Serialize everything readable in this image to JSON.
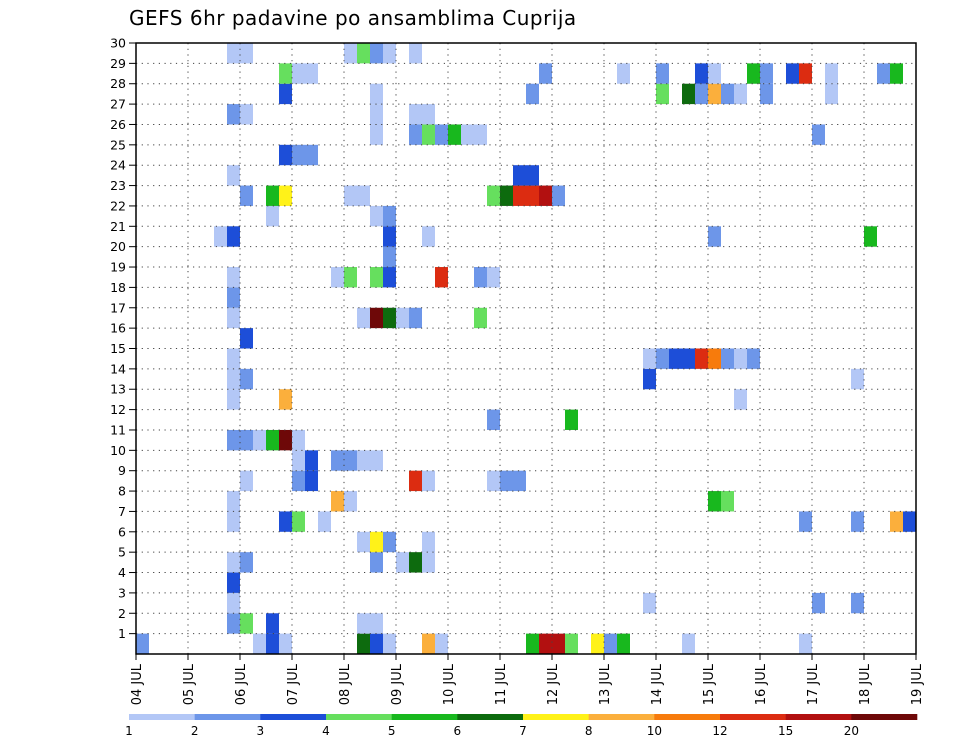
{
  "chart_data": {
    "type": "heatmap",
    "title": "GEFS 6hr padavine po ansamblima Cuprija",
    "x_tick_labels": [
      "04 JUL",
      "05 JUL",
      "06 JUL",
      "07 JUL",
      "08 JUL",
      "09 JUL",
      "10 JUL",
      "11 JUL",
      "12 JUL",
      "13 JUL",
      "14 JUL",
      "15 JUL",
      "16 JUL",
      "17 JUL",
      "18 JUL",
      "19 JUL"
    ],
    "y_tick_labels": [
      "1",
      "2",
      "3",
      "4",
      "5",
      "6",
      "7",
      "8",
      "9",
      "10",
      "11",
      "12",
      "13",
      "14",
      "15",
      "16",
      "17",
      "18",
      "19",
      "20",
      "21",
      "22",
      "23",
      "24",
      "25",
      "26",
      "27",
      "28",
      "29",
      "30"
    ],
    "x_range": [
      "04 JUL 00z",
      "19 JUL 00z"
    ],
    "time_step_hours": 6,
    "y_range": [
      0,
      30
    ],
    "grid": "dotted",
    "legend": {
      "position": "bottom",
      "boundaries": [
        "1",
        "2",
        "3",
        "4",
        "5",
        "6",
        "7",
        "8",
        "10",
        "12",
        "15",
        "20"
      ],
      "colors": [
        "#b3c7f6",
        "#6d96e9",
        "#1d4ed8",
        "#66df5e",
        "#18b81e",
        "#0d6b0e",
        "#fff219",
        "#fbaf3c",
        "#f77b0c",
        "#dc2c11",
        "#b21010",
        "#6e0808"
      ]
    },
    "cells": [
      {
        "x": "04 JUL 00z",
        "y": 0,
        "bin": 2
      },
      {
        "x": "06 JUL 06z",
        "y": 0,
        "bin": 1
      },
      {
        "x": "06 JUL 12z",
        "y": 0,
        "bin": 3
      },
      {
        "x": "06 JUL 18z",
        "y": 0,
        "bin": 1
      },
      {
        "x": "08 JUL 06z",
        "y": 0,
        "bin": 6
      },
      {
        "x": "08 JUL 12z",
        "y": 0,
        "bin": 3
      },
      {
        "x": "08 JUL 18z",
        "y": 0,
        "bin": 1
      },
      {
        "x": "09 JUL 12z",
        "y": 0,
        "bin": 8
      },
      {
        "x": "09 JUL 18z",
        "y": 0,
        "bin": 1
      },
      {
        "x": "11 JUL 12z",
        "y": 0,
        "bin": 5
      },
      {
        "x": "11 JUL 18z",
        "y": 0,
        "bin": 11
      },
      {
        "x": "12 JUL 00z",
        "y": 0,
        "bin": 11
      },
      {
        "x": "12 JUL 06z",
        "y": 0,
        "bin": 4
      },
      {
        "x": "12 JUL 18z",
        "y": 0,
        "bin": 7
      },
      {
        "x": "13 JUL 00z",
        "y": 0,
        "bin": 2
      },
      {
        "x": "13 JUL 06z",
        "y": 0,
        "bin": 5
      },
      {
        "x": "14 JUL 12z",
        "y": 0,
        "bin": 1
      },
      {
        "x": "16 JUL 18z",
        "y": 0,
        "bin": 1
      },
      {
        "x": "05 JUL 18z",
        "y": 1,
        "bin": 2
      },
      {
        "x": "06 JUL 00z",
        "y": 1,
        "bin": 4
      },
      {
        "x": "06 JUL 12z",
        "y": 1,
        "bin": 3
      },
      {
        "x": "08 JUL 06z",
        "y": 1,
        "bin": 1
      },
      {
        "x": "08 JUL 12z",
        "y": 1,
        "bin": 1
      },
      {
        "x": "05 JUL 18z",
        "y": 2,
        "bin": 1
      },
      {
        "x": "13 JUL 18z",
        "y": 2,
        "bin": 1
      },
      {
        "x": "17 JUL 00z",
        "y": 2,
        "bin": 2
      },
      {
        "x": "17 JUL 18z",
        "y": 2,
        "bin": 2
      },
      {
        "x": "05 JUL 18z",
        "y": 3,
        "bin": 3
      },
      {
        "x": "05 JUL 18z",
        "y": 4,
        "bin": 1
      },
      {
        "x": "06 JUL 00z",
        "y": 4,
        "bin": 2
      },
      {
        "x": "08 JUL 12z",
        "y": 4,
        "bin": 2
      },
      {
        "x": "09 JUL 00z",
        "y": 4,
        "bin": 1
      },
      {
        "x": "09 JUL 06z",
        "y": 4,
        "bin": 6
      },
      {
        "x": "09 JUL 12z",
        "y": 4,
        "bin": 1
      },
      {
        "x": "08 JUL 06z",
        "y": 5,
        "bin": 1
      },
      {
        "x": "08 JUL 12z",
        "y": 5,
        "bin": 7
      },
      {
        "x": "08 JUL 18z",
        "y": 5,
        "bin": 2
      },
      {
        "x": "09 JUL 12z",
        "y": 5,
        "bin": 1
      },
      {
        "x": "05 JUL 18z",
        "y": 6,
        "bin": 1
      },
      {
        "x": "06 JUL 18z",
        "y": 6,
        "bin": 3
      },
      {
        "x": "07 JUL 00z",
        "y": 6,
        "bin": 4
      },
      {
        "x": "07 JUL 12z",
        "y": 6,
        "bin": 1
      },
      {
        "x": "16 JUL 18z",
        "y": 6,
        "bin": 2
      },
      {
        "x": "17 JUL 18z",
        "y": 6,
        "bin": 2
      },
      {
        "x": "18 JUL 12z",
        "y": 6,
        "bin": 8
      },
      {
        "x": "18 JUL 18z",
        "y": 6,
        "bin": 3
      },
      {
        "x": "05 JUL 18z",
        "y": 7,
        "bin": 1
      },
      {
        "x": "07 JUL 18z",
        "y": 7,
        "bin": 8
      },
      {
        "x": "08 JUL 00z",
        "y": 7,
        "bin": 1
      },
      {
        "x": "15 JUL 00z",
        "y": 7,
        "bin": 5
      },
      {
        "x": "15 JUL 06z",
        "y": 7,
        "bin": 4
      },
      {
        "x": "06 JUL 00z",
        "y": 8,
        "bin": 1
      },
      {
        "x": "07 JUL 00z",
        "y": 8,
        "bin": 2
      },
      {
        "x": "07 JUL 06z",
        "y": 8,
        "bin": 3
      },
      {
        "x": "09 JUL 06z",
        "y": 8,
        "bin": 10
      },
      {
        "x": "09 JUL 12z",
        "y": 8,
        "bin": 1
      },
      {
        "x": "10 JUL 18z",
        "y": 8,
        "bin": 1
      },
      {
        "x": "11 JUL 00z",
        "y": 8,
        "bin": 2
      },
      {
        "x": "11 JUL 06z",
        "y": 8,
        "bin": 2
      },
      {
        "x": "07 JUL 00z",
        "y": 9,
        "bin": 1
      },
      {
        "x": "07 JUL 06z",
        "y": 9,
        "bin": 3
      },
      {
        "x": "07 JUL 18z",
        "y": 9,
        "bin": 2
      },
      {
        "x": "08 JUL 00z",
        "y": 9,
        "bin": 2
      },
      {
        "x": "08 JUL 06z",
        "y": 9,
        "bin": 1
      },
      {
        "x": "08 JUL 12z",
        "y": 9,
        "bin": 1
      },
      {
        "x": "05 JUL 18z",
        "y": 10,
        "bin": 2
      },
      {
        "x": "06 JUL 00z",
        "y": 10,
        "bin": 2
      },
      {
        "x": "06 JUL 06z",
        "y": 10,
        "bin": 1
      },
      {
        "x": "06 JUL 12z",
        "y": 10,
        "bin": 5
      },
      {
        "x": "06 JUL 18z",
        "y": 10,
        "bin": 12
      },
      {
        "x": "07 JUL 00z",
        "y": 10,
        "bin": 1
      },
      {
        "x": "10 JUL 18z",
        "y": 11,
        "bin": 2
      },
      {
        "x": "12 JUL 06z",
        "y": 11,
        "bin": 5
      },
      {
        "x": "05 JUL 18z",
        "y": 12,
        "bin": 1
      },
      {
        "x": "06 JUL 18z",
        "y": 12,
        "bin": 8
      },
      {
        "x": "15 JUL 12z",
        "y": 12,
        "bin": 1
      },
      {
        "x": "05 JUL 18z",
        "y": 13,
        "bin": 1
      },
      {
        "x": "06 JUL 00z",
        "y": 13,
        "bin": 2
      },
      {
        "x": "13 JUL 18z",
        "y": 13,
        "bin": 3
      },
      {
        "x": "17 JUL 18z",
        "y": 13,
        "bin": 1
      },
      {
        "x": "05 JUL 18z",
        "y": 14,
        "bin": 1
      },
      {
        "x": "13 JUL 18z",
        "y": 14,
        "bin": 1
      },
      {
        "x": "14 JUL 00z",
        "y": 14,
        "bin": 2
      },
      {
        "x": "14 JUL 06z",
        "y": 14,
        "bin": 3
      },
      {
        "x": "14 JUL 12z",
        "y": 14,
        "bin": 3
      },
      {
        "x": "14 JUL 18z",
        "y": 14,
        "bin": 10
      },
      {
        "x": "15 JUL 00z",
        "y": 14,
        "bin": 9
      },
      {
        "x": "15 JUL 06z",
        "y": 14,
        "bin": 2
      },
      {
        "x": "15 JUL 12z",
        "y": 14,
        "bin": 1
      },
      {
        "x": "15 JUL 18z",
        "y": 14,
        "bin": 2
      },
      {
        "x": "06 JUL 00z",
        "y": 15,
        "bin": 3
      },
      {
        "x": "05 JUL 18z",
        "y": 16,
        "bin": 1
      },
      {
        "x": "08 JUL 06z",
        "y": 16,
        "bin": 1
      },
      {
        "x": "08 JUL 12z",
        "y": 16,
        "bin": 12
      },
      {
        "x": "08 JUL 18z",
        "y": 16,
        "bin": 6
      },
      {
        "x": "09 JUL 00z",
        "y": 16,
        "bin": 1
      },
      {
        "x": "09 JUL 06z",
        "y": 16,
        "bin": 2
      },
      {
        "x": "10 JUL 12z",
        "y": 16,
        "bin": 4
      },
      {
        "x": "05 JUL 18z",
        "y": 17,
        "bin": 2
      },
      {
        "x": "05 JUL 18z",
        "y": 18,
        "bin": 1
      },
      {
        "x": "07 JUL 18z",
        "y": 18,
        "bin": 1
      },
      {
        "x": "08 JUL 00z",
        "y": 18,
        "bin": 4
      },
      {
        "x": "08 JUL 12z",
        "y": 18,
        "bin": 4
      },
      {
        "x": "08 JUL 18z",
        "y": 18,
        "bin": 3
      },
      {
        "x": "09 JUL 18z",
        "y": 18,
        "bin": 10
      },
      {
        "x": "10 JUL 12z",
        "y": 18,
        "bin": 2
      },
      {
        "x": "10 JUL 18z",
        "y": 18,
        "bin": 1
      },
      {
        "x": "08 JUL 18z",
        "y": 19,
        "bin": 2
      },
      {
        "x": "05 JUL 12z",
        "y": 20,
        "bin": 1
      },
      {
        "x": "05 JUL 18z",
        "y": 20,
        "bin": 3
      },
      {
        "x": "08 JUL 18z",
        "y": 20,
        "bin": 3
      },
      {
        "x": "09 JUL 12z",
        "y": 20,
        "bin": 1
      },
      {
        "x": "15 JUL 00z",
        "y": 20,
        "bin": 2
      },
      {
        "x": "18 JUL 00z",
        "y": 20,
        "bin": 5
      },
      {
        "x": "06 JUL 12z",
        "y": 21,
        "bin": 1
      },
      {
        "x": "08 JUL 12z",
        "y": 21,
        "bin": 1
      },
      {
        "x": "08 JUL 18z",
        "y": 21,
        "bin": 2
      },
      {
        "x": "06 JUL 00z",
        "y": 22,
        "bin": 2
      },
      {
        "x": "06 JUL 12z",
        "y": 22,
        "bin": 5
      },
      {
        "x": "06 JUL 18z",
        "y": 22,
        "bin": 7
      },
      {
        "x": "08 JUL 00z",
        "y": 22,
        "bin": 1
      },
      {
        "x": "08 JUL 06z",
        "y": 22,
        "bin": 1
      },
      {
        "x": "10 JUL 18z",
        "y": 22,
        "bin": 4
      },
      {
        "x": "11 JUL 00z",
        "y": 22,
        "bin": 6
      },
      {
        "x": "11 JUL 06z",
        "y": 22,
        "bin": 10
      },
      {
        "x": "11 JUL 12z",
        "y": 22,
        "bin": 10
      },
      {
        "x": "11 JUL 18z",
        "y": 22,
        "bin": 11
      },
      {
        "x": "12 JUL 00z",
        "y": 22,
        "bin": 2
      },
      {
        "x": "05 JUL 18z",
        "y": 23,
        "bin": 1
      },
      {
        "x": "11 JUL 06z",
        "y": 23,
        "bin": 3
      },
      {
        "x": "11 JUL 12z",
        "y": 23,
        "bin": 3
      },
      {
        "x": "06 JUL 18z",
        "y": 24,
        "bin": 3
      },
      {
        "x": "07 JUL 00z",
        "y": 24,
        "bin": 2
      },
      {
        "x": "07 JUL 06z",
        "y": 24,
        "bin": 2
      },
      {
        "x": "08 JUL 12z",
        "y": 25,
        "bin": 1
      },
      {
        "x": "09 JUL 06z",
        "y": 25,
        "bin": 2
      },
      {
        "x": "09 JUL 12z",
        "y": 25,
        "bin": 4
      },
      {
        "x": "09 JUL 18z",
        "y": 25,
        "bin": 2
      },
      {
        "x": "10 JUL 00z",
        "y": 25,
        "bin": 5
      },
      {
        "x": "10 JUL 06z",
        "y": 25,
        "bin": 1
      },
      {
        "x": "10 JUL 12z",
        "y": 25,
        "bin": 1
      },
      {
        "x": "17 JUL 00z",
        "y": 25,
        "bin": 2
      },
      {
        "x": "05 JUL 18z",
        "y": 26,
        "bin": 2
      },
      {
        "x": "06 JUL 00z",
        "y": 26,
        "bin": 1
      },
      {
        "x": "08 JUL 12z",
        "y": 26,
        "bin": 1
      },
      {
        "x": "09 JUL 06z",
        "y": 26,
        "bin": 1
      },
      {
        "x": "09 JUL 12z",
        "y": 26,
        "bin": 1
      },
      {
        "x": "06 JUL 18z",
        "y": 27,
        "bin": 3
      },
      {
        "x": "08 JUL 12z",
        "y": 27,
        "bin": 1
      },
      {
        "x": "11 JUL 12z",
        "y": 27,
        "bin": 2
      },
      {
        "x": "14 JUL 00z",
        "y": 27,
        "bin": 4
      },
      {
        "x": "14 JUL 12z",
        "y": 27,
        "bin": 6
      },
      {
        "x": "14 JUL 18z",
        "y": 27,
        "bin": 2
      },
      {
        "x": "15 JUL 00z",
        "y": 27,
        "bin": 8
      },
      {
        "x": "15 JUL 06z",
        "y": 27,
        "bin": 2
      },
      {
        "x": "15 JUL 12z",
        "y": 27,
        "bin": 1
      },
      {
        "x": "16 JUL 00z",
        "y": 27,
        "bin": 2
      },
      {
        "x": "17 JUL 06z",
        "y": 27,
        "bin": 1
      },
      {
        "x": "06 JUL 18z",
        "y": 28,
        "bin": 4
      },
      {
        "x": "07 JUL 00z",
        "y": 28,
        "bin": 1
      },
      {
        "x": "07 JUL 06z",
        "y": 28,
        "bin": 1
      },
      {
        "x": "11 JUL 18z",
        "y": 28,
        "bin": 2
      },
      {
        "x": "13 JUL 06z",
        "y": 28,
        "bin": 1
      },
      {
        "x": "14 JUL 00z",
        "y": 28,
        "bin": 2
      },
      {
        "x": "14 JUL 18z",
        "y": 28,
        "bin": 3
      },
      {
        "x": "15 JUL 00z",
        "y": 28,
        "bin": 1
      },
      {
        "x": "15 JUL 18z",
        "y": 28,
        "bin": 5
      },
      {
        "x": "16 JUL 00z",
        "y": 28,
        "bin": 2
      },
      {
        "x": "16 JUL 12z",
        "y": 28,
        "bin": 3
      },
      {
        "x": "16 JUL 18z",
        "y": 28,
        "bin": 10
      },
      {
        "x": "17 JUL 06z",
        "y": 28,
        "bin": 1
      },
      {
        "x": "18 JUL 06z",
        "y": 28,
        "bin": 2
      },
      {
        "x": "18 JUL 12z",
        "y": 28,
        "bin": 5
      },
      {
        "x": "05 JUL 18z",
        "y": 29,
        "bin": 1
      },
      {
        "x": "06 JUL 00z",
        "y": 29,
        "bin": 1
      },
      {
        "x": "08 JUL 00z",
        "y": 29,
        "bin": 1
      },
      {
        "x": "08 JUL 06z",
        "y": 29,
        "bin": 4
      },
      {
        "x": "08 JUL 12z",
        "y": 29,
        "bin": 2
      },
      {
        "x": "08 JUL 18z",
        "y": 29,
        "bin": 1
      },
      {
        "x": "09 JUL 06z",
        "y": 29,
        "bin": 1
      }
    ]
  }
}
